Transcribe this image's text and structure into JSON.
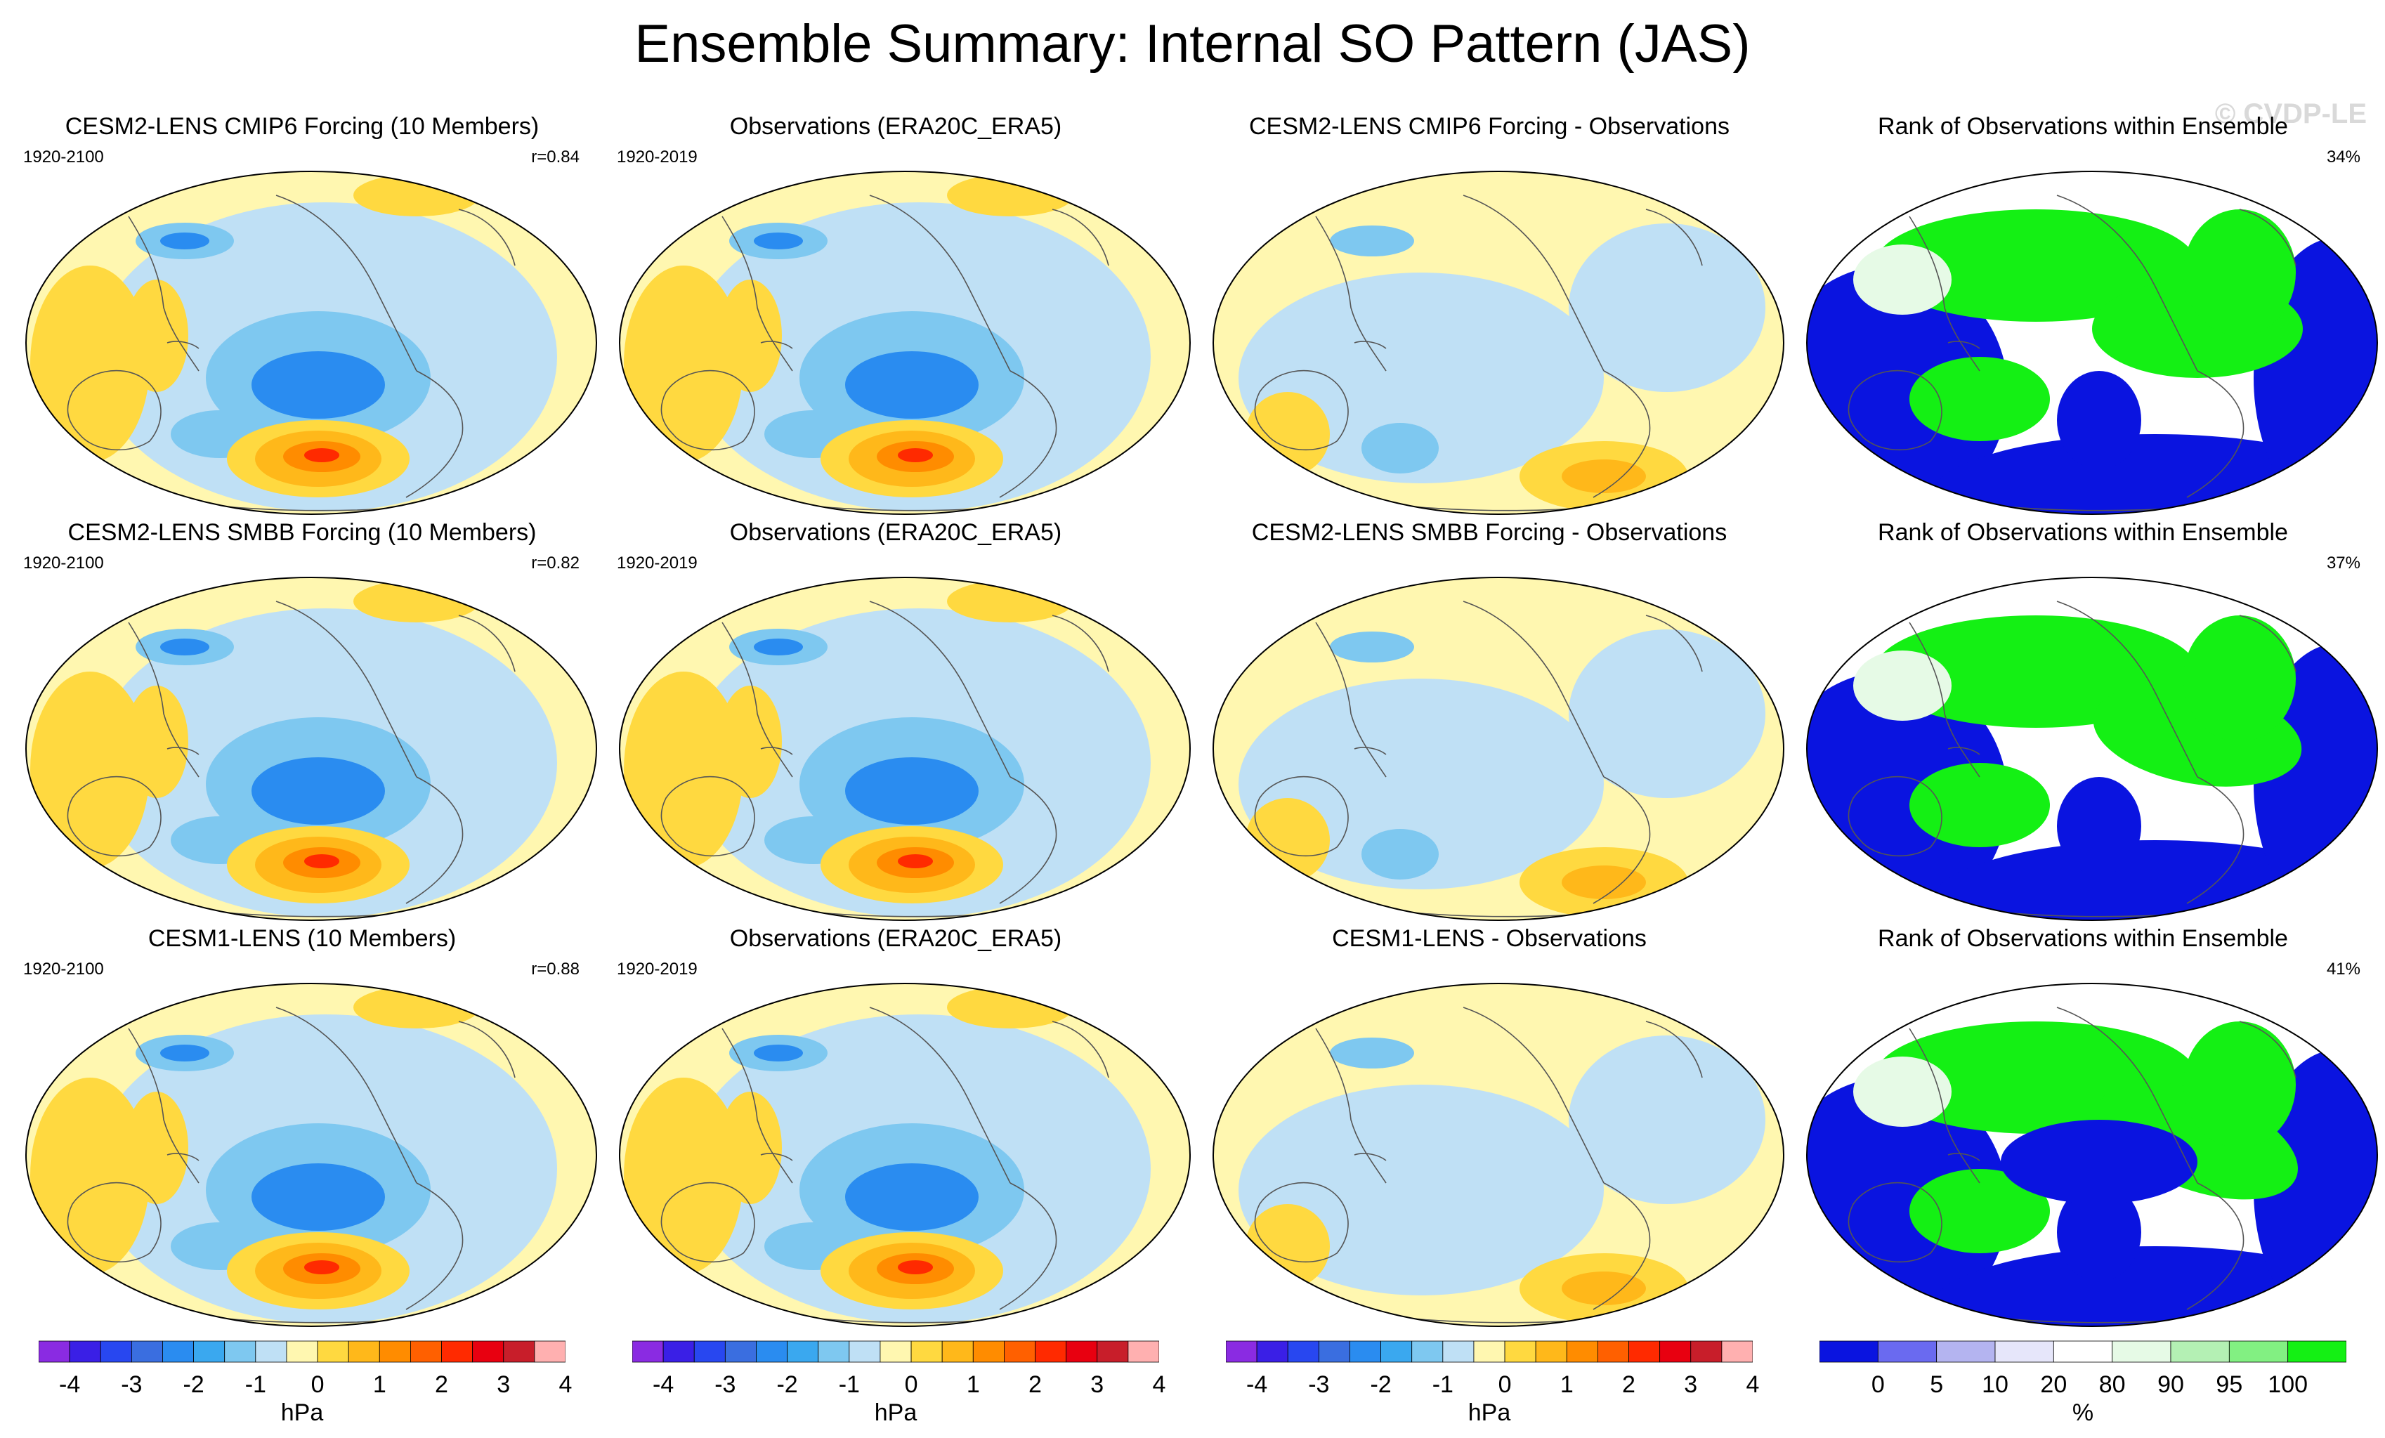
{
  "title": "Ensemble Summary: Internal SO Pattern (JAS)",
  "watermark": "© CVDP-LE",
  "rows": [
    {
      "model": {
        "title": "CESM2-LENS CMIP6 Forcing (10 Members)",
        "period": "1920-2100",
        "stat": "r=0.84"
      },
      "obs": {
        "title": "Observations (ERA20C_ERA5)",
        "period": "1920-2019"
      },
      "diff": {
        "title": "CESM2-LENS CMIP6 Forcing - Observations"
      },
      "rank": {
        "title": "Rank of Observations within Ensemble",
        "stat": "34%"
      }
    },
    {
      "model": {
        "title": "CESM2-LENS SMBB Forcing (10 Members)",
        "period": "1920-2100",
        "stat": "r=0.82"
      },
      "obs": {
        "title": "Observations (ERA20C_ERA5)",
        "period": "1920-2019"
      },
      "diff": {
        "title": "CESM2-LENS SMBB Forcing - Observations"
      },
      "rank": {
        "title": "Rank of Observations within Ensemble",
        "stat": "37%"
      }
    },
    {
      "model": {
        "title": "CESM1-LENS (10 Members)",
        "period": "1920-2100",
        "stat": "r=0.88"
      },
      "obs": {
        "title": "Observations (ERA20C_ERA5)",
        "period": "1920-2019"
      },
      "diff": {
        "title": "CESM1-LENS - Observations"
      },
      "rank": {
        "title": "Rank of Observations within Ensemble",
        "stat": "41%"
      }
    }
  ],
  "colorbars": {
    "hpa": {
      "unit": "hPa",
      "ticks": [
        "-4",
        "-3",
        "-2",
        "-1",
        "0",
        "1",
        "2",
        "3",
        "4"
      ],
      "colors": [
        "#8a2be2",
        "#3a1fe6",
        "#2847f0",
        "#3a6ee0",
        "#2a8cf0",
        "#3aa8ef",
        "#7ec8f0",
        "#bfe0f5",
        "#fff7b0",
        "#ffd940",
        "#ffb81a",
        "#ff8c00",
        "#ff6000",
        "#ff2a00",
        "#e80010",
        "#c81e2a",
        "#ffb0b0"
      ]
    },
    "rank": {
      "unit": "%",
      "ticks": [
        "0",
        "5",
        "10",
        "20",
        "80",
        "90",
        "95",
        "100"
      ],
      "colors": [
        "#0a14e0",
        "#6a6af0",
        "#b4b4f0",
        "#e6e6fa",
        "#ffffff",
        "#e6fae6",
        "#b4f0b4",
        "#82f082",
        "#14f014"
      ]
    }
  },
  "map_colors": {
    "blue_strong": "#2a8cf0",
    "blue_mid": "#7ec8f0",
    "blue_light": "#bfe0f5",
    "yellow_light": "#fff7b0",
    "yellow": "#ffd940",
    "orange": "#ffb81a",
    "orange_dark": "#ff8c00",
    "red": "#ff2a00",
    "rank_blue": "#0a14e0",
    "rank_green": "#14f014"
  }
}
